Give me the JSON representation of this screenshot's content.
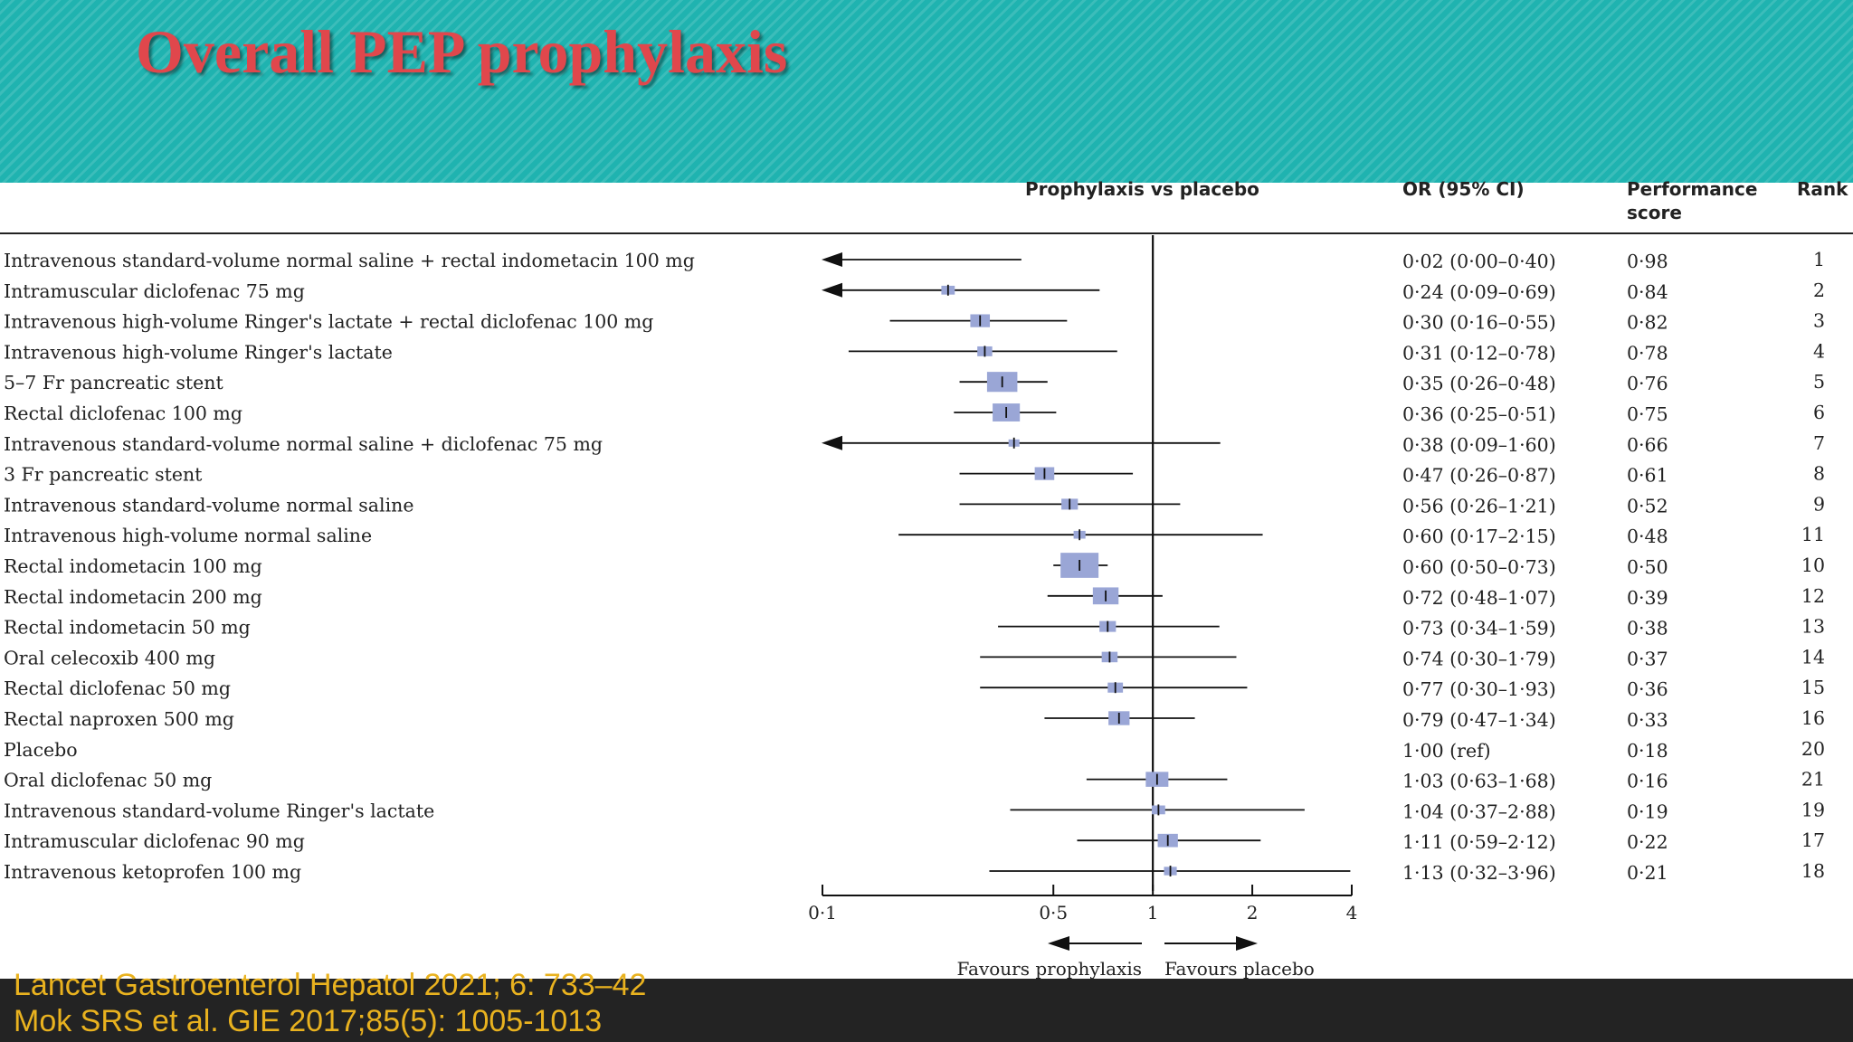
{
  "slide": {
    "title": "Overall PEP prophylaxis",
    "citations": [
      "Lancet Gastroenterol Hepatol 2021; 6: 733–42",
      "Mok SRS et al. GIE 2017;85(5): 1005-1013"
    ]
  },
  "colors": {
    "header_bg": "#1fb3b0",
    "title": "#e0474c",
    "box": "#9aa6d6",
    "citation": "#e9b21f"
  },
  "chart_data": {
    "type": "forest",
    "columns": {
      "plot": "Prophylaxis vs placebo",
      "or": "OR (95% CI)",
      "score_line1": "Performance",
      "score_line2": "score",
      "rank": "Rank"
    },
    "xscale": "log",
    "xlim": [
      0.1,
      4
    ],
    "xticks": [
      0.1,
      0.5,
      1,
      2,
      4
    ],
    "xtick_labels": [
      "0·1",
      "0·5",
      "1",
      "2",
      "4"
    ],
    "reference_line": 1,
    "favours_left": "Favours prophylaxis",
    "favours_right": "Favours placebo",
    "rows": [
      {
        "label": "Intravenous standard-volume normal saline + rectal indometacin 100 mg",
        "or": 0.02,
        "lo": 0.0,
        "hi": 0.4,
        "ci": "0·02 (0·00–0·40)",
        "score": "0·98",
        "rank": "1",
        "weight": 0
      },
      {
        "label": "Intramuscular diclofenac 75 mg",
        "or": 0.24,
        "lo": 0.09,
        "hi": 0.69,
        "ci": "0·24 (0·09–0·69)",
        "score": "0·84",
        "rank": "2",
        "weight": 0.2
      },
      {
        "label": "Intravenous high-volume Ringer's lactate + rectal diclofenac 100 mg",
        "or": 0.3,
        "lo": 0.16,
        "hi": 0.55,
        "ci": "0·30 (0·16–0·55)",
        "score": "0·82",
        "rank": "3",
        "weight": 0.4
      },
      {
        "label": "Intravenous high-volume Ringer's lactate",
        "or": 0.31,
        "lo": 0.12,
        "hi": 0.78,
        "ci": "0·31 (0·12–0·78)",
        "score": "0·78",
        "rank": "4",
        "weight": 0.25
      },
      {
        "label": "5–7 Fr pancreatic stent",
        "or": 0.35,
        "lo": 0.26,
        "hi": 0.48,
        "ci": "0·35 (0·26–0·48)",
        "score": "0·76",
        "rank": "5",
        "weight": 0.75
      },
      {
        "label": "Rectal diclofenac 100 mg",
        "or": 0.36,
        "lo": 0.25,
        "hi": 0.51,
        "ci": "0·36 (0·25–0·51)",
        "score": "0·75",
        "rank": "6",
        "weight": 0.65
      },
      {
        "label": "Intravenous standard-volume normal saline + diclofenac 75 mg",
        "or": 0.38,
        "lo": 0.09,
        "hi": 1.6,
        "ci": "0·38 (0·09–1·60)",
        "score": "0·66",
        "rank": "7",
        "weight": 0.12
      },
      {
        "label": "3 Fr pancreatic stent",
        "or": 0.47,
        "lo": 0.26,
        "hi": 0.87,
        "ci": "0·47 (0·26–0·87)",
        "score": "0·61",
        "rank": "8",
        "weight": 0.4
      },
      {
        "label": "Intravenous standard-volume normal saline",
        "or": 0.56,
        "lo": 0.26,
        "hi": 1.21,
        "ci": "0·56 (0·26–1·21)",
        "score": "0·52",
        "rank": "9",
        "weight": 0.3
      },
      {
        "label": "Intravenous high-volume normal saline",
        "or": 0.6,
        "lo": 0.17,
        "hi": 2.15,
        "ci": "0·60 (0·17–2·15)",
        "score": "0·48",
        "rank": "11",
        "weight": 0.15
      },
      {
        "label": "Rectal indometacin 100 mg",
        "or": 0.6,
        "lo": 0.5,
        "hi": 0.73,
        "ci": "0·60 (0·50–0·73)",
        "score": "0·50",
        "rank": "10",
        "weight": 1
      },
      {
        "label": "Rectal indometacin 200 mg",
        "or": 0.72,
        "lo": 0.48,
        "hi": 1.07,
        "ci": "0·72 (0·48–1·07)",
        "score": "0·39",
        "rank": "12",
        "weight": 0.6
      },
      {
        "label": "Rectal indometacin 50 mg",
        "or": 0.73,
        "lo": 0.34,
        "hi": 1.59,
        "ci": "0·73 (0·34–1·59)",
        "score": "0·38",
        "rank": "13",
        "weight": 0.3
      },
      {
        "label": "Oral celecoxib 400 mg",
        "or": 0.74,
        "lo": 0.3,
        "hi": 1.79,
        "ci": "0·74 (0·30–1·79)",
        "score": "0·37",
        "rank": "14",
        "weight": 0.28
      },
      {
        "label": "Rectal diclofenac 50 mg",
        "or": 0.77,
        "lo": 0.3,
        "hi": 1.93,
        "ci": "0·77 (0·30–1·93)",
        "score": "0·36",
        "rank": "15",
        "weight": 0.26
      },
      {
        "label": "Rectal naproxen 500 mg",
        "or": 0.79,
        "lo": 0.47,
        "hi": 1.34,
        "ci": "0·79 (0·47–1·34)",
        "score": "0·33",
        "rank": "16",
        "weight": 0.45
      },
      {
        "label": "Placebo",
        "or": null,
        "lo": null,
        "hi": null,
        "ci": "1·00 (ref)",
        "score": "0·18",
        "rank": "20",
        "weight": 0
      },
      {
        "label": "Oral diclofenac 50 mg",
        "or": 1.03,
        "lo": 0.63,
        "hi": 1.68,
        "ci": "1·03 (0·63–1·68)",
        "score": "0·16",
        "rank": "21",
        "weight": 0.5
      },
      {
        "label": "Intravenous standard-volume Ringer's lactate",
        "or": 1.04,
        "lo": 0.37,
        "hi": 2.88,
        "ci": "1·04 (0·37–2·88)",
        "score": "0·19",
        "rank": "19",
        "weight": 0.2
      },
      {
        "label": "Intramuscular diclofenac 90 mg",
        "or": 1.11,
        "lo": 0.59,
        "hi": 2.12,
        "ci": "1·11 (0·59–2·12)",
        "score": "0·22",
        "rank": "17",
        "weight": 0.42
      },
      {
        "label": "Intravenous ketoprofen 100 mg",
        "or": 1.13,
        "lo": 0.32,
        "hi": 3.96,
        "ci": "1·13 (0·32–3·96)",
        "score": "0·21",
        "rank": "18",
        "weight": 0.18
      }
    ]
  }
}
